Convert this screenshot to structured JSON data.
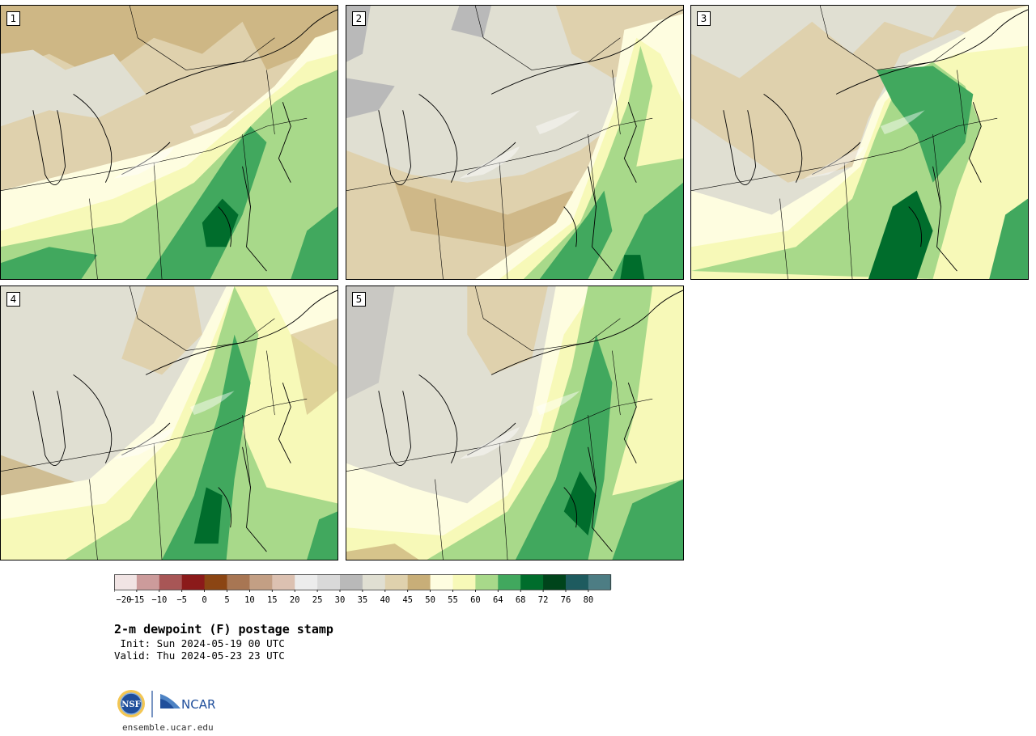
{
  "title": "2-m dewpoint (F) postage stamp",
  "init_text": " Init: Sun 2024-05-19 00 UTC",
  "valid_text": "Valid: Thu 2024-05-23 23 UTC",
  "site": "ensemble.ucar.edu",
  "logos": {
    "left": "NSF",
    "right": "NCAR"
  },
  "panels": [
    {
      "label": "1"
    },
    {
      "label": "2"
    },
    {
      "label": "3"
    },
    {
      "label": "4"
    },
    {
      "label": "5"
    }
  ],
  "colorbar": {
    "ticks": [
      "−20",
      "−15",
      "−10",
      "−5",
      "0",
      "5",
      "10",
      "15",
      "20",
      "25",
      "30",
      "35",
      "40",
      "45",
      "50",
      "55",
      "60",
      "64",
      "68",
      "72",
      "76",
      "80"
    ],
    "colors": [
      "#f1e4e4",
      "#cc9b9b",
      "#a85656",
      "#8b1a1a",
      "#8b4513",
      "#a87653",
      "#c39f84",
      "#dcc1b1",
      "#ececec",
      "#d9d9d9",
      "#b9b9b9",
      "#e0dfd2",
      "#dfd1ad",
      "#c8ae78",
      "#fefde0",
      "#f7f9b8",
      "#a8d98a",
      "#41a85e",
      "#006d2c",
      "#00441b",
      "#1e5b5f",
      "#4d7d84"
    ]
  },
  "fills": {
    "f35": "#e0dfd2",
    "f40": "#dfd1ad",
    "f45": "#c8ae78",
    "f50": "#fefde0",
    "f55": "#f7f9b8",
    "f60": "#a8d98a",
    "f64": "#41a85e",
    "f68": "#006d2c",
    "f30": "#b9b9b9"
  }
}
